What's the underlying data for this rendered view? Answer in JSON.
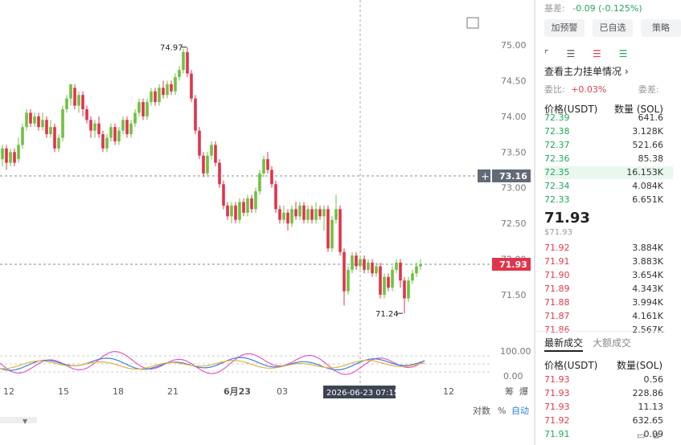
{
  "chart": {
    "price_axis": [
      "75.00",
      "74.50",
      "74.00",
      "73.50",
      "73.00",
      "72.50",
      "72.00",
      "71.50"
    ],
    "high_label": "74.97",
    "low_label": "71.24",
    "ref_price_label": "73.16",
    "current_price_label": "71.93",
    "indicator_axis": [
      "100.00",
      "0.00"
    ],
    "time_axis": [
      "12",
      "15",
      "18",
      "21",
      "6月23",
      "03",
      "12"
    ],
    "cursor_time": "2026-06-23 07:15",
    "right_labels": [
      "筹",
      "爆"
    ],
    "bottom_controls": [
      "对数",
      "%",
      "自动"
    ]
  },
  "panel": {
    "basis_label": "基差:",
    "basis_value": "-0.09 (-0.125%)",
    "buttons": [
      "加预警",
      "已自选",
      "策略"
    ],
    "order_view_link": "查看主力挂单情况",
    "commission_ratio_label": "委比:",
    "commission_ratio_value": "+0.03%",
    "commission_diff_label": "委差:",
    "book_headers": {
      "price": "价格(USDT)",
      "qty": "数量 (SOL)"
    },
    "asks": [
      {
        "price": "72.39",
        "qty": "641.6"
      },
      {
        "price": "72.38",
        "qty": "3.128K"
      },
      {
        "price": "72.37",
        "qty": "521.66"
      },
      {
        "price": "72.36",
        "qty": "85.38"
      },
      {
        "price": "72.35",
        "qty": "16.153K"
      },
      {
        "price": "72.34",
        "qty": "4.084K"
      },
      {
        "price": "72.33",
        "qty": "6.651K"
      }
    ],
    "last_price": "71.93",
    "last_price_usd": "$71.93",
    "bids": [
      {
        "price": "71.92",
        "qty": "3.884K"
      },
      {
        "price": "71.91",
        "qty": "3.883K"
      },
      {
        "price": "71.90",
        "qty": "3.654K"
      },
      {
        "price": "71.89",
        "qty": "4.343K"
      },
      {
        "price": "71.88",
        "qty": "3.994K"
      },
      {
        "price": "71.87",
        "qty": "4.161K"
      },
      {
        "price": "71.86",
        "qty": "2.567K"
      }
    ],
    "trade_tabs": [
      "最新成交",
      "大额成交"
    ],
    "trade_headers": {
      "price": "价格(USDT)",
      "qty": "数量(SOL)"
    },
    "trades": [
      {
        "price": "71.93",
        "qty": "0.56",
        "side": "red"
      },
      {
        "price": "71.93",
        "qty": "228.86",
        "side": "red"
      },
      {
        "price": "71.93",
        "qty": "11.13",
        "side": "red"
      },
      {
        "price": "71.92",
        "qty": "632.65",
        "side": "red"
      },
      {
        "price": "71.91",
        "qty": "0.09",
        "side": "green"
      }
    ]
  },
  "colors": {
    "up": "#23a85a",
    "down": "#e03c4b",
    "candle_up": "#6fc142",
    "candle_down": "#e0344a",
    "accent": "#2a7fd4"
  }
}
